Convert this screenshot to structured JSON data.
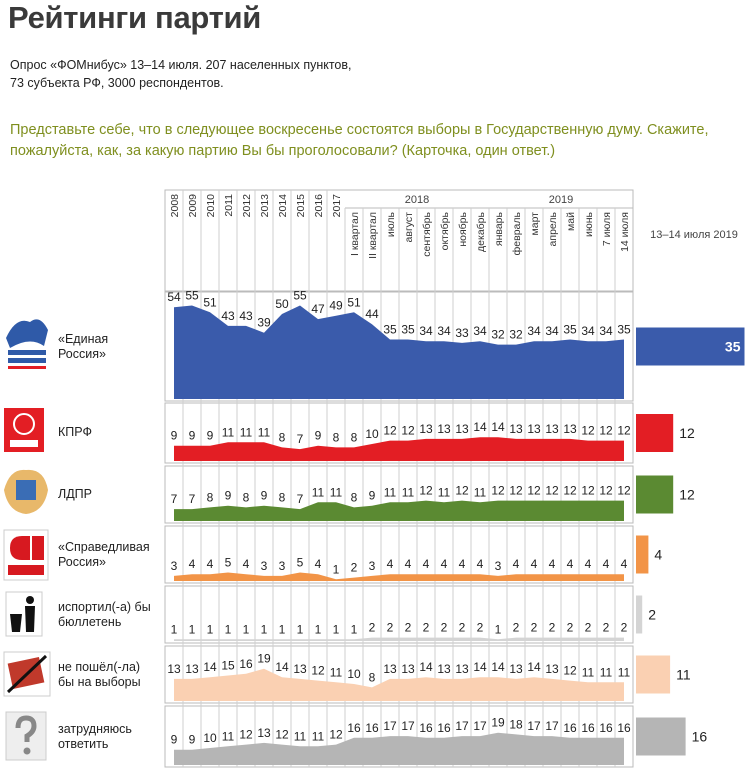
{
  "chart_data": {
    "type": "area",
    "title": "Рейтинги партий",
    "subtitle": [
      "Опрос «ФОМнибус» 13–14 июля. 207 населенных пунктов,",
      "73 субъекта РФ, 3000 респондентов."
    ],
    "question": "Представьте себе, что в следующее воскресенье состоятся выборы в Государственную думу. Скажите, пожалуйста, как, за какую партию Вы бы проголосовали? (Карточка, один ответ.)",
    "years": [
      "2008",
      "2009",
      "2010",
      "2011",
      "2012",
      "2013",
      "2014",
      "2015",
      "2016",
      "2017"
    ],
    "groups": [
      {
        "label": "2018",
        "categories": [
          "I квартал",
          "II квартал",
          "июль",
          "август",
          "сентябрь",
          "октябрь",
          "ноябрь",
          "декабрь"
        ]
      },
      {
        "label": "2019",
        "categories": [
          "январь",
          "февраль",
          "март",
          "апрель",
          "май",
          "июнь",
          "7 июля",
          "14 июля"
        ]
      }
    ],
    "latest_label": "13–14 июля 2019",
    "series": [
      {
        "name": "«Единая Россия»",
        "color": "#3a5bab",
        "values": [
          54,
          55,
          51,
          43,
          43,
          39,
          50,
          55,
          47,
          49,
          51,
          44,
          35,
          35,
          34,
          34,
          33,
          34,
          32,
          32,
          34,
          34,
          35,
          34,
          34,
          35
        ]
      },
      {
        "name": "КПРФ",
        "color": "#e31e24",
        "values": [
          9,
          9,
          9,
          11,
          11,
          11,
          8,
          7,
          9,
          8,
          8,
          10,
          12,
          12,
          13,
          13,
          13,
          14,
          14,
          13,
          13,
          13,
          13,
          12,
          12,
          12
        ]
      },
      {
        "name": "ЛДПР",
        "color": "#5b8a32",
        "values": [
          7,
          7,
          8,
          9,
          8,
          9,
          8,
          7,
          11,
          11,
          8,
          9,
          11,
          11,
          12,
          11,
          12,
          11,
          12,
          12,
          12,
          12,
          12,
          12,
          12,
          12
        ]
      },
      {
        "name": "«Справедливая Россия»",
        "color": "#f29447",
        "values": [
          3,
          4,
          4,
          5,
          4,
          3,
          3,
          5,
          4,
          1,
          2,
          3,
          4,
          4,
          4,
          4,
          4,
          4,
          3,
          4,
          4,
          4,
          4,
          4,
          4,
          4
        ]
      },
      {
        "name": "испортил(-а) бы бюллетень",
        "color": "#d4d4d4",
        "values": [
          1,
          1,
          1,
          1,
          1,
          1,
          1,
          1,
          1,
          1,
          1,
          2,
          2,
          2,
          2,
          2,
          2,
          2,
          1,
          2,
          2,
          2,
          2,
          2,
          2,
          2
        ]
      },
      {
        "name": "не пошёл(-ла) бы на выборы",
        "color": "#fad0b2",
        "values": [
          13,
          13,
          14,
          15,
          16,
          19,
          14,
          13,
          12,
          11,
          10,
          8,
          13,
          13,
          14,
          13,
          13,
          14,
          14,
          13,
          14,
          13,
          12,
          11,
          11,
          11
        ]
      },
      {
        "name": "затрудняюсь ответить",
        "color": "#b5b5b5",
        "values": [
          9,
          9,
          10,
          11,
          12,
          13,
          12,
          11,
          11,
          12,
          16,
          16,
          17,
          17,
          16,
          16,
          17,
          17,
          19,
          18,
          17,
          17,
          16,
          16,
          16,
          16
        ]
      }
    ]
  }
}
